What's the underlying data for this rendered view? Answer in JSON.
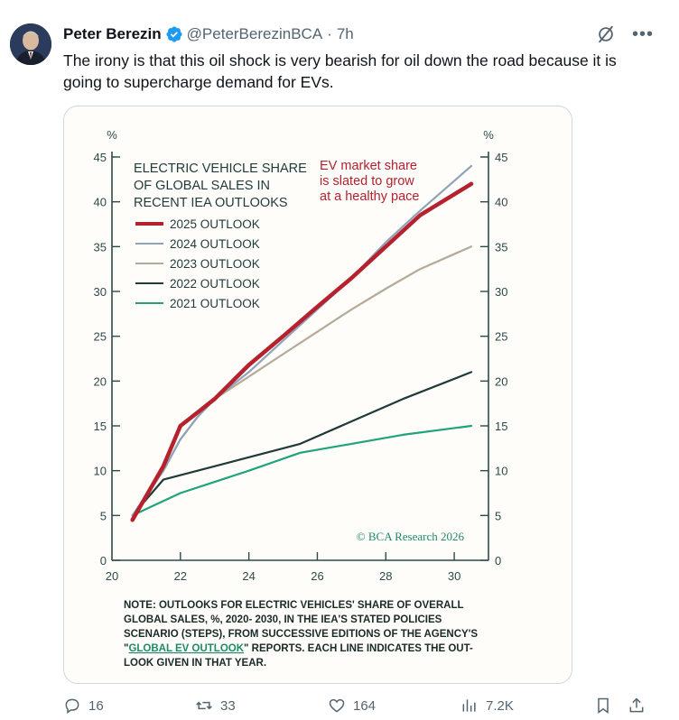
{
  "author": {
    "name": "Peter Berezin",
    "handle": "@PeterBerezinBCA",
    "separator": "·",
    "time": "7h"
  },
  "tweet": {
    "text": "The irony is that this oil shock is very bearish for oil down the road because it is going to supercharge demand for EVs."
  },
  "header_icons": [
    "grok-icon",
    "more-icon"
  ],
  "actions": {
    "replies": "16",
    "reposts": "33",
    "likes": "164",
    "views": "7.2K"
  },
  "colors": {
    "2025": "#b5212d",
    "2024": "#8fa3b8",
    "2023": "#b5aa9a",
    "2022": "#1e3a3a",
    "2021": "#1fa37a",
    "axis": "#2c4a4a",
    "annotation": "#b5212d",
    "watermark": "#1f8a68"
  },
  "chart_data": {
    "type": "line",
    "title": "ELECTRIC VEHICLE SHARE OF GLOBAL SALES IN RECENT IEA OUTLOOKS",
    "title_lines": [
      "ELECTRIC VEHICLE SHARE",
      "OF GLOBAL SALES IN",
      "RECENT IEA OUTLOOKS"
    ],
    "ylabel_left": "%",
    "ylabel_right": "%",
    "xlim": [
      20,
      31
    ],
    "ylim": [
      0,
      45
    ],
    "x_ticks": [
      20,
      22,
      24,
      26,
      28,
      30
    ],
    "y_ticks": [
      0,
      5,
      10,
      15,
      20,
      25,
      30,
      35,
      40,
      45
    ],
    "annotation_lines": [
      "EV market share",
      "is slated to grow",
      "at a healthy pace"
    ],
    "watermark": "© BCΑ Research 2026",
    "legend": "left",
    "series": [
      {
        "name": "2025 OUTLOOK",
        "key": "2025",
        "width": 4.5,
        "points": [
          [
            20.6,
            4.5
          ],
          [
            21.5,
            10.5
          ],
          [
            22.0,
            15.0
          ],
          [
            22.5,
            16.5
          ],
          [
            23.0,
            18.0
          ],
          [
            24.0,
            21.8
          ],
          [
            25.0,
            25.0
          ],
          [
            26.0,
            28.3
          ],
          [
            27.0,
            31.5
          ],
          [
            28.0,
            35.0
          ],
          [
            29.0,
            38.5
          ],
          [
            30.5,
            42.0
          ]
        ]
      },
      {
        "name": "2024 OUTLOOK",
        "key": "2024",
        "width": 2.2,
        "points": [
          [
            20.6,
            5.0
          ],
          [
            21.5,
            10.0
          ],
          [
            22.0,
            13.5
          ],
          [
            22.5,
            16.0
          ],
          [
            23.0,
            18.0
          ],
          [
            24.0,
            21.0
          ],
          [
            25.0,
            24.5
          ],
          [
            26.0,
            28.0
          ],
          [
            27.0,
            31.5
          ],
          [
            28.0,
            35.5
          ],
          [
            29.0,
            39.0
          ],
          [
            30.5,
            44.0
          ]
        ]
      },
      {
        "name": "2023 OUTLOOK",
        "key": "2023",
        "width": 2.2,
        "points": [
          [
            20.6,
            5.0
          ],
          [
            21.5,
            10.0
          ],
          [
            22.0,
            13.5
          ],
          [
            22.5,
            16.0
          ],
          [
            23.0,
            18.0
          ],
          [
            24.0,
            20.5
          ],
          [
            25.0,
            23.0
          ],
          [
            26.0,
            25.5
          ],
          [
            27.0,
            28.0
          ],
          [
            28.0,
            30.3
          ],
          [
            29.0,
            32.5
          ],
          [
            30.5,
            35.0
          ]
        ]
      },
      {
        "name": "2022 OUTLOOK",
        "key": "2022",
        "width": 2.2,
        "points": [
          [
            20.6,
            5.0
          ],
          [
            21.5,
            9.0
          ],
          [
            22.5,
            10.0
          ],
          [
            24.0,
            11.5
          ],
          [
            25.5,
            13.0
          ],
          [
            27.0,
            15.5
          ],
          [
            28.5,
            18.0
          ],
          [
            30.5,
            21.0
          ]
        ]
      },
      {
        "name": "2021 OUTLOOK",
        "key": "2021",
        "width": 2.2,
        "points": [
          [
            20.6,
            5.0
          ],
          [
            22.0,
            7.5
          ],
          [
            24.0,
            10.0
          ],
          [
            25.5,
            12.0
          ],
          [
            27.0,
            13.0
          ],
          [
            28.5,
            14.0
          ],
          [
            30.5,
            15.0
          ]
        ]
      }
    ],
    "note": {
      "before_link": "NOTE: OUTLOOKS FOR ELECTRIC VEHICLES' SHARE OF OVERALL GLOBAL SALES, %, 2020- 2030, IN THE IEA'S STATED POLICIES SCENARIO (STEPS), FROM SUCCESSIVE EDITIONS OF THE AGENCY'S \"",
      "link": "GLOBAL EV OUTLOOK",
      "after_link": "\" REPORTS. EACH LINE INDICATES THE OUT-LOOK GIVEN IN THAT YEAR.",
      "lines": [
        "NOTE: OUTLOOKS FOR ELECTRIC VEHICLES' SHARE OF OVERALL",
        "GLOBAL SALES, %, 2020- 2030, IN THE IEA'S STATED POLICIES",
        "SCENARIO (STEPS), FROM SUCCESSIVE EDITIONS OF THE AGENCY'S",
        "\"|GLOBAL EV OUTLOOK|\" REPORTS. EACH LINE INDICATES THE OUT-",
        "LOOK GIVEN IN THAT YEAR."
      ]
    }
  }
}
